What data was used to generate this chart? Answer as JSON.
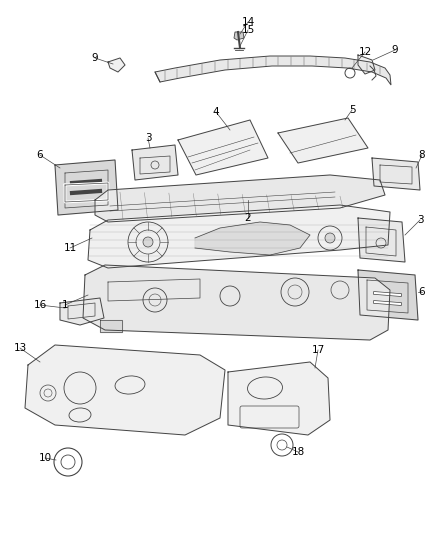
{
  "bg_color": "#ffffff",
  "line_color": "#444444",
  "label_color": "#000000",
  "figsize": [
    4.38,
    5.33
  ],
  "dpi": 100,
  "lw": 0.7
}
